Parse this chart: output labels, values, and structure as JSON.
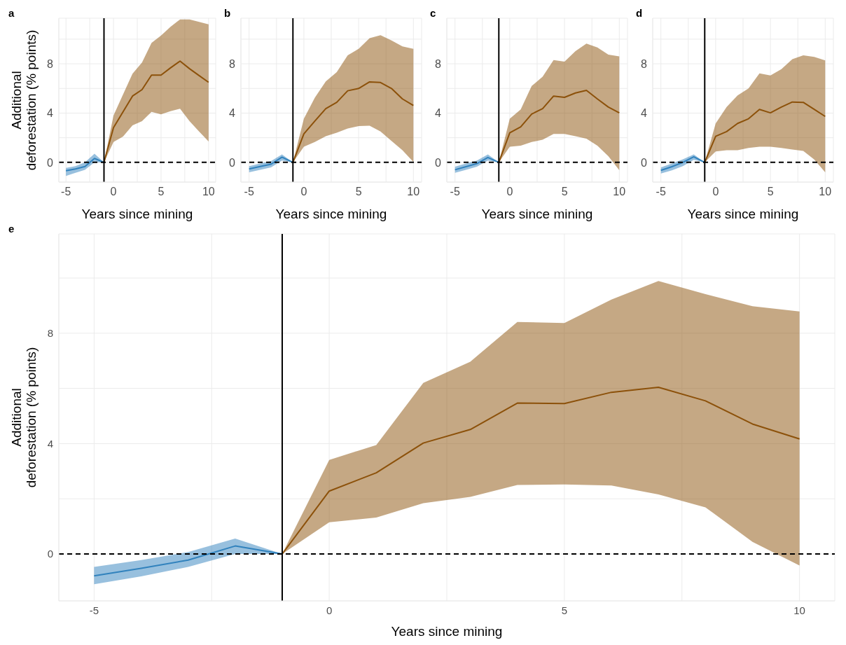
{
  "chart_data": [
    {
      "type": "line",
      "title": "a",
      "xlabel": "Years since mining",
      "ylabel": "Additional\ndeforestation (% points)",
      "xlim": [
        -5.75,
        10.75
      ],
      "ylim": [
        -1.6,
        11.7
      ],
      "xticks": [
        -5,
        {
          "value": -2.5,
          "label": null
        },
        0,
        {
          "value": 2.5,
          "label": null
        },
        5,
        {
          "value": 7.5,
          "label": null
        },
        10
      ],
      "yticks": [
        0,
        {
          "value": 2,
          "label": null
        },
        4,
        {
          "value": 6,
          "label": null
        },
        8,
        {
          "value": 10,
          "label": null
        }
      ],
      "grid": true,
      "ref_lines": [
        {
          "axis": "x",
          "value": -1,
          "color": "#000000"
        },
        {
          "axis": "y",
          "value": 0,
          "color": "#000000",
          "line_style": "dashed"
        }
      ],
      "series": [
        {
          "color": "#3182bd",
          "x": [
            -5,
            -4,
            -3,
            -2,
            -1
          ],
          "values": [
            -0.68,
            -0.53,
            -0.34,
            0.32,
            0
          ],
          "lower": [
            -1.1,
            -0.85,
            -0.6,
            0,
            0
          ],
          "upper": [
            -0.45,
            -0.3,
            0,
            0.7,
            0
          ]
        },
        {
          "color": "#8c510a",
          "x": [
            -1,
            0,
            1,
            2,
            3,
            4,
            5,
            6,
            7,
            8,
            9,
            10
          ],
          "values": [
            0,
            2.82,
            4.1,
            5.38,
            5.9,
            7.08,
            7.08,
            7.67,
            8.22,
            7.6,
            7.05,
            6.5
          ],
          "lower": [
            0,
            1.65,
            2.1,
            3,
            3.35,
            4.1,
            3.9,
            4.15,
            4.35,
            3.35,
            2.5,
            1.7
          ],
          "upper": [
            0,
            3.8,
            5.5,
            7.2,
            8.1,
            9.7,
            10.3,
            11,
            11.6,
            11.6,
            11.4,
            11.2
          ]
        }
      ]
    },
    {
      "type": "line",
      "title": "b",
      "xlabel": "Years since mining",
      "xlim": [
        -5.75,
        10.75
      ],
      "ylim": [
        -1.6,
        11.7
      ],
      "xticks": [
        -5,
        {
          "value": -2.5,
          "label": null
        },
        0,
        {
          "value": 2.5,
          "label": null
        },
        5,
        {
          "value": 7.5,
          "label": null
        },
        10
      ],
      "yticks": [
        0,
        {
          "value": 2,
          "label": null
        },
        4,
        {
          "value": 6,
          "label": null
        },
        8,
        {
          "value": 10,
          "label": null
        }
      ],
      "grid": true,
      "ref_lines": [
        {
          "axis": "x",
          "value": -1,
          "color": "#000000"
        },
        {
          "axis": "y",
          "value": 0,
          "color": "#000000",
          "line_style": "dashed"
        }
      ],
      "series": [
        {
          "color": "#3182bd",
          "x": [
            -5,
            -4,
            -3,
            -2,
            -1
          ],
          "values": [
            -0.53,
            -0.34,
            -0.15,
            0.42,
            0
          ],
          "lower": [
            -0.8,
            -0.6,
            -0.4,
            0.15,
            0
          ],
          "upper": [
            -0.3,
            -0.1,
            0.1,
            0.65,
            0
          ]
        },
        {
          "color": "#8c510a",
          "x": [
            -1,
            0,
            1,
            2,
            3,
            4,
            5,
            6,
            7,
            8,
            9,
            10
          ],
          "values": [
            0,
            2.31,
            3.35,
            4.36,
            4.87,
            5.81,
            6,
            6.53,
            6.48,
            6,
            5.15,
            4.62
          ],
          "lower": [
            0,
            1.27,
            1.65,
            2.12,
            2.4,
            2.75,
            2.94,
            2.97,
            2.5,
            1.74,
            0.98,
            0.04
          ],
          "upper": [
            0,
            3.54,
            5.25,
            6.57,
            7.33,
            8.69,
            9.22,
            10.08,
            10.32,
            9.89,
            9.41,
            9.22
          ]
        }
      ]
    },
    {
      "type": "line",
      "title": "c",
      "xlabel": "Years since mining",
      "xlim": [
        -5.75,
        10.75
      ],
      "ylim": [
        -1.6,
        11.7
      ],
      "xticks": [
        -5,
        {
          "value": -2.5,
          "label": null
        },
        0,
        {
          "value": 2.5,
          "label": null
        },
        5,
        {
          "value": 7.5,
          "label": null
        },
        10
      ],
      "yticks": [
        0,
        {
          "value": 2,
          "label": null
        },
        4,
        {
          "value": 6,
          "label": null
        },
        8,
        {
          "value": 10,
          "label": null
        }
      ],
      "grid": true,
      "ref_lines": [
        {
          "axis": "x",
          "value": -1,
          "color": "#000000"
        },
        {
          "axis": "y",
          "value": 0,
          "color": "#000000",
          "line_style": "dashed"
        }
      ],
      "series": [
        {
          "color": "#3182bd",
          "x": [
            -5,
            -4,
            -3,
            -2,
            -1
          ],
          "values": [
            -0.6,
            -0.35,
            -0.1,
            0.4,
            0
          ],
          "lower": [
            -0.85,
            -0.6,
            -0.35,
            0.15,
            0
          ],
          "upper": [
            -0.35,
            -0.1,
            0.15,
            0.65,
            0
          ]
        },
        {
          "color": "#8c510a",
          "x": [
            -1,
            0,
            1,
            2,
            3,
            4,
            5,
            6,
            7,
            8,
            9,
            10
          ],
          "values": [
            0,
            2.4,
            2.88,
            3.92,
            4.36,
            5.38,
            5.28,
            5.63,
            5.85,
            5.15,
            4.49,
            4.02
          ],
          "lower": [
            0,
            1.27,
            1.36,
            1.65,
            1.84,
            2.31,
            2.31,
            2.12,
            1.93,
            1.36,
            0.51,
            -0.63
          ],
          "upper": [
            0,
            3.54,
            4.3,
            6.2,
            6.95,
            8.31,
            8.18,
            9.03,
            9.64,
            9.32,
            8.75,
            8.6
          ]
        }
      ]
    },
    {
      "type": "line",
      "title": "d",
      "xlabel": "Years since mining",
      "xlim": [
        -5.75,
        10.75
      ],
      "ylim": [
        -1.6,
        11.7
      ],
      "xticks": [
        -5,
        {
          "value": -2.5,
          "label": null
        },
        0,
        {
          "value": 2.5,
          "label": null
        },
        5,
        {
          "value": 7.5,
          "label": null
        },
        10
      ],
      "yticks": [
        0,
        {
          "value": 2,
          "label": null
        },
        4,
        {
          "value": 6,
          "label": null
        },
        8,
        {
          "value": 10,
          "label": null
        }
      ],
      "grid": true,
      "ref_lines": [
        {
          "axis": "x",
          "value": -1,
          "color": "#000000"
        },
        {
          "axis": "y",
          "value": 0,
          "color": "#000000",
          "line_style": "dashed"
        }
      ],
      "series": [
        {
          "color": "#3182bd",
          "x": [
            -5,
            -4,
            -3,
            -2,
            -1
          ],
          "values": [
            -0.65,
            -0.35,
            0,
            0.45,
            0
          ],
          "lower": [
            -0.9,
            -0.65,
            -0.3,
            0.2,
            0
          ],
          "upper": [
            -0.4,
            -0.1,
            0.25,
            0.65,
            0
          ]
        },
        {
          "color": "#8c510a",
          "x": [
            -1,
            0,
            1,
            2,
            3,
            4,
            5,
            6,
            7,
            8,
            9,
            10
          ],
          "values": [
            0,
            2.12,
            2.5,
            3.16,
            3.54,
            4.3,
            4.02,
            4.49,
            4.9,
            4.87,
            4.3,
            3.73
          ],
          "lower": [
            0,
            0.89,
            0.98,
            0.98,
            1.17,
            1.27,
            1.27,
            1.17,
            1.04,
            0.93,
            0.23,
            -0.81
          ],
          "upper": [
            0,
            3.16,
            4.49,
            5.44,
            6,
            7.23,
            7.05,
            7.56,
            8.37,
            8.69,
            8.56,
            8.28
          ]
        }
      ]
    },
    {
      "type": "line",
      "title": "e",
      "xlabel": "Years since mining",
      "ylabel": "Additional\ndeforestation (% points)",
      "xlim": [
        -5.75,
        10.75
      ],
      "ylim": [
        -1.7,
        11.6
      ],
      "xticks": [
        -5,
        {
          "value": -2.5,
          "label": null
        },
        0,
        {
          "value": 2.5,
          "label": null
        },
        5,
        {
          "value": 7.5,
          "label": null
        },
        10
      ],
      "yticks": [
        0,
        {
          "value": 2,
          "label": null
        },
        4,
        {
          "value": 6,
          "label": null
        },
        8,
        {
          "value": 10,
          "label": null
        }
      ],
      "grid": true,
      "ref_lines": [
        {
          "axis": "x",
          "value": -1,
          "color": "#000000"
        },
        {
          "axis": "y",
          "value": 0,
          "color": "#000000",
          "line_style": "dashed"
        }
      ],
      "series": [
        {
          "color": "#3182bd",
          "x": [
            -5,
            -4,
            -3,
            -2,
            -1
          ],
          "values": [
            -0.79,
            -0.52,
            -0.22,
            0.29,
            0
          ],
          "lower": [
            -1.1,
            -0.81,
            -0.47,
            0,
            0
          ],
          "upper": [
            -0.47,
            -0.22,
            0.07,
            0.56,
            0
          ]
        },
        {
          "color": "#8c510a",
          "x": [
            -1,
            0,
            1,
            2,
            3,
            4,
            5,
            6,
            7,
            8,
            9,
            10
          ],
          "values": [
            0,
            2.28,
            2.94,
            4.02,
            4.51,
            5.47,
            5.45,
            5.86,
            6.04,
            5.55,
            4.71,
            4.17
          ],
          "lower": [
            0,
            1.15,
            1.32,
            1.84,
            2.07,
            2.5,
            2.52,
            2.48,
            2.16,
            1.69,
            0.44,
            -0.42
          ],
          "upper": [
            0,
            3.41,
            3.95,
            6.2,
            6.97,
            8.41,
            8.37,
            9.22,
            9.89,
            9.42,
            8.98,
            8.79
          ]
        }
      ]
    }
  ]
}
